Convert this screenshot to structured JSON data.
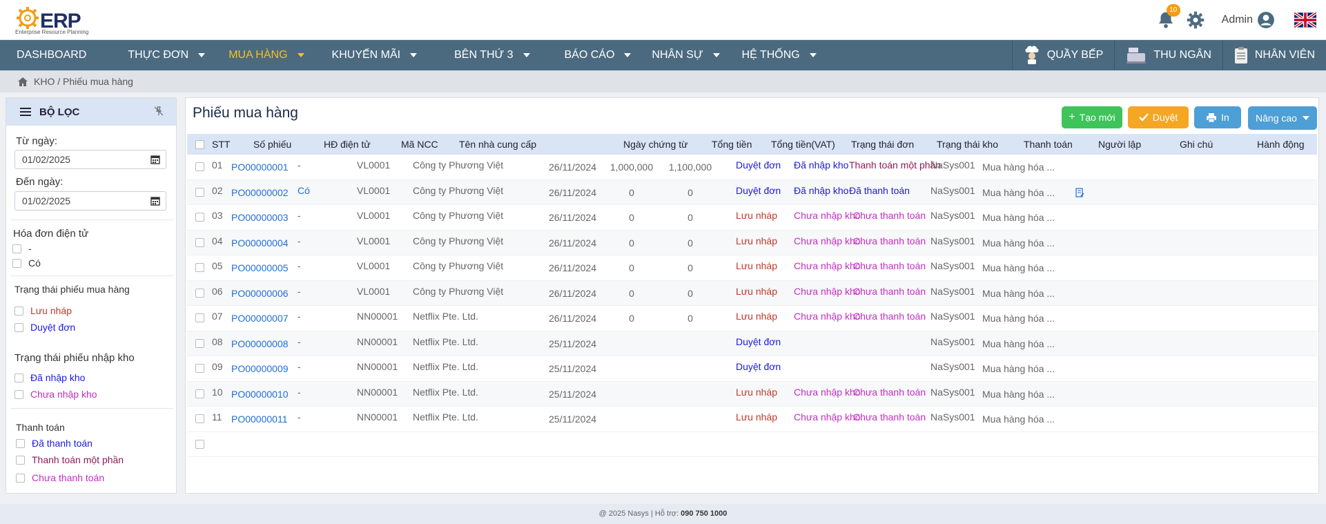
{
  "app": {
    "logo_text": "ERP",
    "logo_sub": "Enterprise Resource Planning",
    "notif_count": "10",
    "user": "Admin"
  },
  "nav": {
    "items": [
      {
        "label": "DASHBOARD",
        "caret": false
      },
      {
        "label": "THỰC ĐƠN",
        "caret": true
      },
      {
        "label": "MUA HÀNG",
        "caret": true
      },
      {
        "label": "KHUYẾN MÃI",
        "caret": true
      },
      {
        "label": "BÊN THỨ 3",
        "caret": true
      },
      {
        "label": "BÁO CÁO",
        "caret": true
      },
      {
        "label": "NHÂN SỰ",
        "caret": true
      },
      {
        "label": "HỆ THỐNG",
        "caret": true
      }
    ],
    "right": [
      "QUẦY BẾP",
      "THU NGÂN",
      "NHÂN VIÊN"
    ]
  },
  "breadcrumb": "KHO / Phiếu mua hàng",
  "filter": {
    "title": "BỘ LỌC",
    "from_label": "Từ ngày:",
    "from_value": "01/02/2025",
    "to_label": "Đến ngày:",
    "to_value": "01/02/2025",
    "einvoice_title": "Hóa đơn điện tử",
    "einvoice_opts": [
      "-",
      "Có"
    ],
    "po_status_title": "Trạng thái phiếu mua hàng",
    "po_status_opts": [
      "Lưu nháp",
      "Duyệt đơn"
    ],
    "stock_status_title": "Trạng thái phiếu nhập kho",
    "stock_status_opts": [
      "Đã nhập kho",
      "Chưa nhập kho"
    ],
    "payment_title": "Thanh toán",
    "payment_opts": [
      "Đã thanh toán",
      "Thanh toán một phần",
      "Chưa thanh toán"
    ]
  },
  "main": {
    "title": "Phiếu mua hàng",
    "btn_new": "Tạo mới",
    "btn_approve": "Duyệt",
    "btn_print": "In",
    "btn_adv": "Nâng cao"
  },
  "table": {
    "headers": [
      "STT",
      "Số phiếu",
      "HĐ điện tử",
      "Mã  NCC",
      "Tên nhà cung cấp",
      "Ngày chứng từ",
      "Tổng tiền",
      "Tổng tiền(VAT)",
      "Trạng thái đơn",
      "Trạng thái kho",
      "Thanh toán",
      "Người lập",
      "Ghi chú",
      "Hành động"
    ],
    "rows": [
      {
        "stt": "01",
        "po": "PO00000001",
        "einv": "-",
        "ncc": "VL0001",
        "supplier": "Công ty Phương Việt",
        "date": "26/11/2024",
        "total": "1,000,000",
        "vat": "1,100,000",
        "status": "Duyệt đơn",
        "stock": "Đã nhập kho",
        "pay": "Thanh toán một phần",
        "by": "NaSys001",
        "note": "Mua hàng hóa ...",
        "action": false
      },
      {
        "stt": "02",
        "po": "PO00000002",
        "einv": "Có",
        "ncc": "VL0001",
        "supplier": "Công ty Phương Việt",
        "date": "26/11/2024",
        "total": "0",
        "vat": "0",
        "status": "Duyệt đơn",
        "stock": "Đã nhập kho",
        "pay": "Đã thanh toán",
        "by": "NaSys001",
        "note": "Mua hàng hóa ...",
        "action": true
      },
      {
        "stt": "03",
        "po": "PO00000003",
        "einv": "-",
        "ncc": "VL0001",
        "supplier": "Công ty Phương Việt",
        "date": "26/11/2024",
        "total": "0",
        "vat": "0",
        "status": "Lưu nháp",
        "stock": "Chưa nhập kho",
        "pay": "Chưa thanh toán",
        "by": "NaSys001",
        "note": "Mua hàng hóa ...",
        "action": false
      },
      {
        "stt": "04",
        "po": "PO00000004",
        "einv": "-",
        "ncc": "VL0001",
        "supplier": "Công ty Phương Việt",
        "date": "26/11/2024",
        "total": "0",
        "vat": "0",
        "status": "Lưu nháp",
        "stock": "Chưa nhập kho",
        "pay": "Chưa thanh toán",
        "by": "NaSys001",
        "note": "Mua hàng hóa ...",
        "action": false
      },
      {
        "stt": "05",
        "po": "PO00000005",
        "einv": "-",
        "ncc": "VL0001",
        "supplier": "Công ty Phương Việt",
        "date": "26/11/2024",
        "total": "0",
        "vat": "0",
        "status": "Lưu nháp",
        "stock": "Chưa nhập kho",
        "pay": "Chưa thanh toán",
        "by": "NaSys001",
        "note": "Mua hàng hóa ...",
        "action": false
      },
      {
        "stt": "06",
        "po": "PO00000006",
        "einv": "-",
        "ncc": "VL0001",
        "supplier": "Công ty Phương Việt",
        "date": "26/11/2024",
        "total": "0",
        "vat": "0",
        "status": "Lưu nháp",
        "stock": "Chưa nhập kho",
        "pay": "Chưa thanh toán",
        "by": "NaSys001",
        "note": "Mua hàng hóa ...",
        "action": false
      },
      {
        "stt": "07",
        "po": "PO00000007",
        "einv": "-",
        "ncc": "NN00001",
        "supplier": "Netflix Pte. Ltd.",
        "date": "26/11/2024",
        "total": "0",
        "vat": "0",
        "status": "Lưu nháp",
        "stock": "Chưa nhập kho",
        "pay": "Chưa thanh toán",
        "by": "NaSys001",
        "note": "Mua hàng hóa ...",
        "action": false
      },
      {
        "stt": "08",
        "po": "PO00000008",
        "einv": "-",
        "ncc": "NN00001",
        "supplier": "Netflix Pte. Ltd.",
        "date": "25/11/2024",
        "total": "",
        "vat": "",
        "status": "Duyệt đơn",
        "stock": "",
        "pay": "",
        "by": "NaSys001",
        "note": "Mua hàng hóa ...",
        "action": false
      },
      {
        "stt": "09",
        "po": "PO00000009",
        "einv": "-",
        "ncc": "NN00001",
        "supplier": "Netflix Pte. Ltd.",
        "date": "25/11/2024",
        "total": "",
        "vat": "",
        "status": "Duyệt đơn",
        "stock": "",
        "pay": "",
        "by": "NaSys001",
        "note": "Mua hàng hóa ...",
        "action": false
      },
      {
        "stt": "10",
        "po": "PO00000010",
        "einv": "-",
        "ncc": "NN00001",
        "supplier": "Netflix Pte. Ltd.",
        "date": "25/11/2024",
        "total": "",
        "vat": "",
        "status": "Lưu nháp",
        "stock": "Chưa nhập kho",
        "pay": "Chưa thanh toán",
        "by": "NaSys001",
        "note": "Mua hàng hóa ...",
        "action": false
      },
      {
        "stt": "11",
        "po": "PO00000011",
        "einv": "-",
        "ncc": "NN00001",
        "supplier": "Netflix Pte. Ltd.",
        "date": "25/11/2024",
        "total": "",
        "vat": "",
        "status": "Lưu nháp",
        "stock": "Chưa nhập kho",
        "pay": "Chưa thanh toán",
        "by": "NaSys001",
        "note": "Mua hàng hóa ...",
        "action": false
      }
    ]
  },
  "footer": {
    "copy": "@ 2025 Nasys  | Hỗ trợ:",
    "phone": "090 750 1000"
  }
}
